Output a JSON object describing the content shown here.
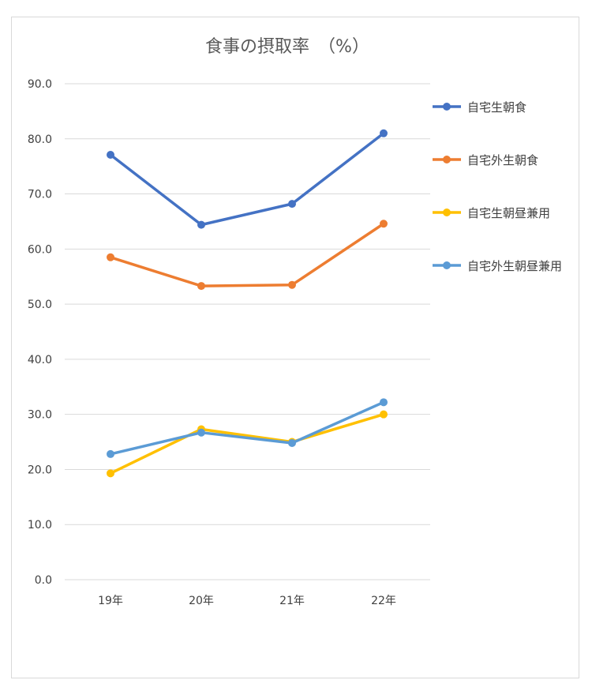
{
  "chart_data": {
    "type": "line",
    "title": "食事の摂取率　（%）",
    "categories": [
      "19年",
      "20年",
      "21年",
      "22年"
    ],
    "ylim": [
      0,
      90
    ],
    "yticks": [
      "0.0",
      "10.0",
      "20.0",
      "30.0",
      "40.0",
      "50.0",
      "60.0",
      "70.0",
      "80.0",
      "90.0"
    ],
    "grid": true,
    "legend_position": "right",
    "series": [
      {
        "name": "自宅生朝食",
        "color": "#4472c4",
        "values": [
          77.1,
          64.4,
          68.2,
          81.0
        ]
      },
      {
        "name": "自宅外生朝食",
        "color": "#ed7d31",
        "values": [
          58.5,
          53.3,
          53.5,
          64.6
        ]
      },
      {
        "name": "自宅生朝昼兼用",
        "color": "#ffc000",
        "values": [
          19.3,
          27.3,
          25.0,
          30.0
        ]
      },
      {
        "name": "自宅外生朝昼兼用",
        "color": "#5b9bd5",
        "values": [
          22.8,
          26.7,
          24.8,
          32.2
        ]
      }
    ]
  }
}
